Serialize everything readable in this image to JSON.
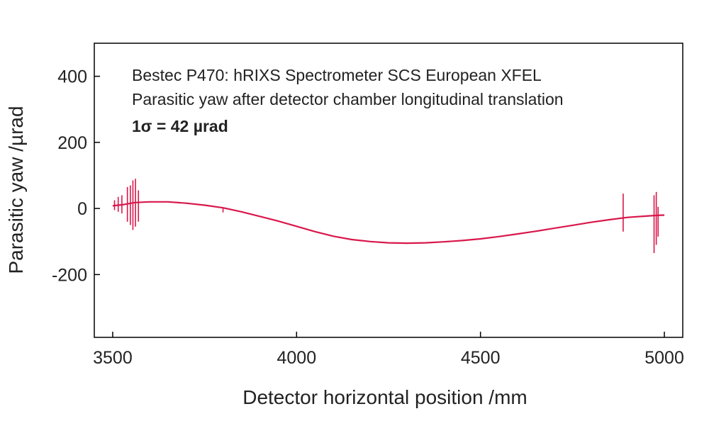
{
  "chart_data": {
    "type": "line",
    "xlabel": "Detector horizontal position /mm",
    "ylabel": "Parasitic yaw /µrad",
    "xlim": [
      3450,
      5050
    ],
    "ylim": [
      -390,
      500
    ],
    "xticks": [
      3500,
      4000,
      4500,
      5000
    ],
    "yticks": [
      400,
      200,
      0,
      -200
    ],
    "grid": false,
    "annotations": [
      "Bestec P470: hRIXS Spectrometer SCS European XFEL",
      "Parasitic yaw after detector chamber longitudinal translation",
      "1σ = 42 µrad"
    ],
    "series": [
      {
        "color": "#d9174b",
        "x": [
          3500,
          3530,
          3560,
          3600,
          3650,
          3700,
          3750,
          3800,
          3850,
          3900,
          3950,
          4000,
          4050,
          4100,
          4150,
          4200,
          4250,
          4300,
          4350,
          4400,
          4450,
          4500,
          4550,
          4600,
          4650,
          4700,
          4750,
          4800,
          4850,
          4900,
          4950,
          4980,
          5000
        ],
        "y": [
          8,
          12,
          18,
          20,
          20,
          16,
          10,
          2,
          -10,
          -24,
          -38,
          -54,
          -70,
          -84,
          -94,
          -100,
          -104,
          -105,
          -104,
          -101,
          -97,
          -92,
          -85,
          -77,
          -69,
          -60,
          -51,
          -42,
          -34,
          -27,
          -23,
          -21,
          -20
        ],
        "spikes": [
          {
            "x": 3505,
            "min": -5,
            "max": 25
          },
          {
            "x": 3515,
            "min": -10,
            "max": 35
          },
          {
            "x": 3525,
            "min": -15,
            "max": 40
          },
          {
            "x": 3540,
            "min": -40,
            "max": 65
          },
          {
            "x": 3548,
            "min": -50,
            "max": 70
          },
          {
            "x": 3555,
            "min": -65,
            "max": 85
          },
          {
            "x": 3562,
            "min": -55,
            "max": 90
          },
          {
            "x": 3570,
            "min": -40,
            "max": 55
          },
          {
            "x": 3800,
            "min": -12,
            "max": 2
          },
          {
            "x": 4888,
            "min": -70,
            "max": 45
          },
          {
            "x": 4972,
            "min": -135,
            "max": 40
          },
          {
            "x": 4978,
            "min": -110,
            "max": 50
          },
          {
            "x": 4983,
            "min": -85,
            "max": 5
          }
        ]
      }
    ]
  }
}
